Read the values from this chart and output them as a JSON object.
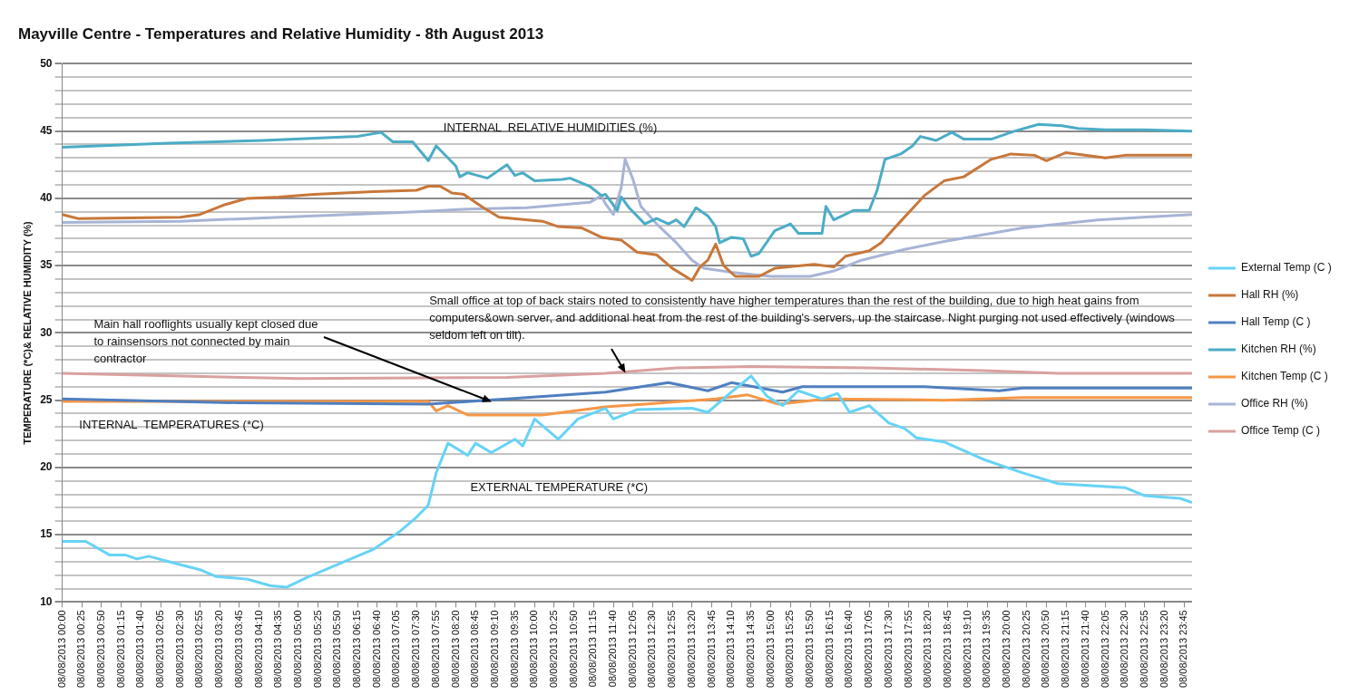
{
  "chart_data": {
    "type": "line",
    "title": "Mayville Centre - Temperatures and Relative Humidity - 8th August 2013",
    "ylabel": "TEMPERATURE (*C)& RELATIVE HUMIDITY (%)",
    "xlim": [
      "2013-08-08T00:00",
      "2013-08-08T23:55"
    ],
    "xticks": [
      {
        "value": "2013-08-08T00:00",
        "label": "08/08/2013 00:00"
      },
      {
        "value": "2013-08-08T00:25",
        "label": "08/08/2013 00:25"
      },
      {
        "value": "2013-08-08T00:50",
        "label": "08/08/2013 00:50"
      },
      {
        "value": "2013-08-08T01:15",
        "label": "08/08/2013 01:15"
      },
      {
        "value": "2013-08-08T01:40",
        "label": "08/08/2013 01:40"
      },
      {
        "value": "2013-08-08T02:05",
        "label": "08/08/2013 02:05"
      },
      {
        "value": "2013-08-08T02:30",
        "label": "08/08/2013 02:30"
      },
      {
        "value": "2013-08-08T02:55",
        "label": "08/08/2013 02:55"
      },
      {
        "value": "2013-08-08T03:20",
        "label": "08/08/2013 03:20"
      },
      {
        "value": "2013-08-08T03:45",
        "label": "08/08/2013 03:45"
      },
      {
        "value": "2013-08-08T04:10",
        "label": "08/08/2013 04:10"
      },
      {
        "value": "2013-08-08T04:35",
        "label": "08/08/2013 04:35"
      },
      {
        "value": "2013-08-08T05:00",
        "label": "08/08/2013 05:00"
      },
      {
        "value": "2013-08-08T05:25",
        "label": "08/08/2013 05:25"
      },
      {
        "value": "2013-08-08T05:50",
        "label": "08/08/2013 05:50"
      },
      {
        "value": "2013-08-08T06:15",
        "label": "08/08/2013 06:15"
      },
      {
        "value": "2013-08-08T06:40",
        "label": "08/08/2013 06:40"
      },
      {
        "value": "2013-08-08T07:05",
        "label": "08/08/2013 07:05"
      },
      {
        "value": "2013-08-08T07:30",
        "label": "08/08/2013 07:30"
      },
      {
        "value": "2013-08-08T07:55",
        "label": "08/08/2013 07:55"
      },
      {
        "value": "2013-08-08T08:20",
        "label": "08/08/2013 08:20"
      },
      {
        "value": "2013-08-08T08:45",
        "label": "08/08/2013 08:45"
      },
      {
        "value": "2013-08-08T09:10",
        "label": "08/08/2013 09:10"
      },
      {
        "value": "2013-08-08T09:35",
        "label": "08/08/2013 09:35"
      },
      {
        "value": "2013-08-08T10:00",
        "label": "08/08/2013 10:00"
      },
      {
        "value": "2013-08-08T10:25",
        "label": "08/08/2013 10:25"
      },
      {
        "value": "2013-08-08T10:50",
        "label": "08/08/2013 10:50"
      },
      {
        "value": "2013-08-08T11:15",
        "label": "08/08/2013 11:15"
      },
      {
        "value": "2013-08-08T11:40",
        "label": "08/08/2013 11:40"
      },
      {
        "value": "2013-08-08T12:05",
        "label": "08/08/2013 12:05"
      },
      {
        "value": "2013-08-08T12:30",
        "label": "08/08/2013 12:30"
      },
      {
        "value": "2013-08-08T12:55",
        "label": "08/08/2013 12:55"
      },
      {
        "value": "2013-08-08T13:20",
        "label": "08/08/2013 13:20"
      },
      {
        "value": "2013-08-08T13:45",
        "label": "08/08/2013 13:45"
      },
      {
        "value": "2013-08-08T14:10",
        "label": "08/08/2013 14:10"
      },
      {
        "value": "2013-08-08T14:35",
        "label": "08/08/2013 14:35"
      },
      {
        "value": "2013-08-08T15:00",
        "label": "08/08/2013 15:00"
      },
      {
        "value": "2013-08-08T15:25",
        "label": "08/08/2013 15:25"
      },
      {
        "value": "2013-08-08T15:50",
        "label": "08/08/2013 15:50"
      },
      {
        "value": "2013-08-08T16:15",
        "label": "08/08/2013 16:15"
      },
      {
        "value": "2013-08-08T16:40",
        "label": "08/08/2013 16:40"
      },
      {
        "value": "2013-08-08T17:05",
        "label": "08/08/2013 17:05"
      },
      {
        "value": "2013-08-08T17:30",
        "label": "08/08/2013 17:30"
      },
      {
        "value": "2013-08-08T17:55",
        "label": "08/08/2013 17:55"
      },
      {
        "value": "2013-08-08T18:20",
        "label": "08/08/2013 18:20"
      },
      {
        "value": "2013-08-08T18:45",
        "label": "08/08/2013 18:45"
      },
      {
        "value": "2013-08-08T19:10",
        "label": "08/08/2013 19:10"
      },
      {
        "value": "2013-08-08T19:35",
        "label": "08/08/2013 19:35"
      },
      {
        "value": "2013-08-08T20:00",
        "label": "08/08/2013 20:00"
      },
      {
        "value": "2013-08-08T20:25",
        "label": "08/08/2013 20:25"
      },
      {
        "value": "2013-08-08T20:50",
        "label": "08/08/2013 20:50"
      },
      {
        "value": "2013-08-08T21:15",
        "label": "08/08/2013 21:15"
      },
      {
        "value": "2013-08-08T21:40",
        "label": "08/08/2013 21:40"
      },
      {
        "value": "2013-08-08T22:05",
        "label": "08/08/2013 22:05"
      },
      {
        "value": "2013-08-08T22:30",
        "label": "08/08/2013 22:30"
      },
      {
        "value": "2013-08-08T22:55",
        "label": "08/08/2013 22:55"
      },
      {
        "value": "2013-08-08T23:20",
        "label": "08/08/2013 23:20"
      },
      {
        "value": "2013-08-08T23:45",
        "label": "08/08/2013 23:45"
      }
    ],
    "ylim": [
      10,
      50
    ],
    "yticks": [
      10,
      {
        "value": 11,
        "label": null
      },
      {
        "value": 12,
        "label": null
      },
      {
        "value": 13,
        "label": null
      },
      {
        "value": 14,
        "label": null
      },
      15,
      {
        "value": 16,
        "label": null
      },
      {
        "value": 17,
        "label": null
      },
      {
        "value": 18,
        "label": null
      },
      {
        "value": 19,
        "label": null
      },
      20,
      {
        "value": 21,
        "label": null
      },
      {
        "value": 22,
        "label": null
      },
      {
        "value": 23,
        "label": null
      },
      {
        "value": 24,
        "label": null
      },
      25,
      {
        "value": 26,
        "label": null
      },
      {
        "value": 27,
        "label": null
      },
      {
        "value": 28,
        "label": null
      },
      {
        "value": 29,
        "label": null
      },
      30,
      {
        "value": 31,
        "label": null
      },
      {
        "value": 32,
        "label": null
      },
      {
        "value": 33,
        "label": null
      },
      {
        "value": 34,
        "label": null
      },
      35,
      {
        "value": 36,
        "label": null
      },
      {
        "value": 37,
        "label": null
      },
      {
        "value": 38,
        "label": null
      },
      {
        "value": 39,
        "label": null
      },
      40,
      {
        "value": 41,
        "label": null
      },
      {
        "value": 42,
        "label": null
      },
      {
        "value": 43,
        "label": null
      },
      {
        "value": 44,
        "label": null
      },
      45,
      {
        "value": 46,
        "label": null
      },
      {
        "value": 47,
        "label": null
      },
      {
        "value": 48,
        "label": null
      },
      {
        "value": 49,
        "label": null
      },
      50
    ],
    "grid": "y",
    "legend": "right",
    "marker": "none",
    "line_style": "solid",
    "annotations": [
      "INTERNAL  RELATIVE HUMIDITIES (%)",
      {
        "text": "Small office at top of back stairs noted to consistently have higher temperatures than the rest of the building, due to high heat gains from computers&own server, and additional heat from the rest of the building's servers, up the staircase. Night purging not used effectively (windows seldom left on tilt).",
        "x": "2013-08-08T11:55",
        "y": 27.0
      },
      {
        "text": "Main hall rooflights usually kept closed due to rainsensors not connected by main contractor",
        "x": "2013-08-08T09:05",
        "y": 24.9
      },
      "INTERNAL  TEMPERATURES (*C)",
      "EXTERNAL TEMPERATURE (*C)"
    ],
    "series": [
      {
        "name": "External Temp (C )",
        "color": "#66d3f7",
        "x": [
          "2013-08-08T00:00",
          "2013-08-08T00:30",
          "2013-08-08T01:00",
          "2013-08-08T01:20",
          "2013-08-08T01:35",
          "2013-08-08T01:50",
          "2013-08-08T02:15",
          "2013-08-08T02:55",
          "2013-08-08T03:15",
          "2013-08-08T03:55",
          "2013-08-08T04:25",
          "2013-08-08T04:45",
          "2013-08-08T05:10",
          "2013-08-08T05:50",
          "2013-08-08T06:35",
          "2013-08-08T07:10",
          "2013-08-08T07:30",
          "2013-08-08T07:45",
          "2013-08-08T07:55",
          "2013-08-08T08:10",
          "2013-08-08T08:35",
          "2013-08-08T08:45",
          "2013-08-08T09:05",
          "2013-08-08T09:35",
          "2013-08-08T09:45",
          "2013-08-08T10:00",
          "2013-08-08T10:30",
          "2013-08-08T10:55",
          "2013-08-08T11:30",
          "2013-08-08T11:40",
          "2013-08-08T12:10",
          "2013-08-08T13:20",
          "2013-08-08T13:40",
          "2013-08-08T14:10",
          "2013-08-08T14:35",
          "2013-08-08T14:55",
          "2013-08-08T15:15",
          "2013-08-08T15:35",
          "2013-08-08T16:05",
          "2013-08-08T16:25",
          "2013-08-08T16:40",
          "2013-08-08T17:05",
          "2013-08-08T17:30",
          "2013-08-08T17:50",
          "2013-08-08T18:05",
          "2013-08-08T18:40",
          "2013-08-08T19:30",
          "2013-08-08T20:20",
          "2013-08-08T21:05",
          "2013-08-08T22:30",
          "2013-08-08T22:55",
          "2013-08-08T23:40",
          "2013-08-08T23:55"
        ],
        "values": [
          14.5,
          14.5,
          13.5,
          13.5,
          13.2,
          13.4,
          13.0,
          12.4,
          11.9,
          11.7,
          11.2,
          11.1,
          11.8,
          12.8,
          13.9,
          15.3,
          16.3,
          17.2,
          19.6,
          21.8,
          20.9,
          21.8,
          21.1,
          22.1,
          21.6,
          23.6,
          22.1,
          23.6,
          24.4,
          23.6,
          24.3,
          24.4,
          24.1,
          25.6,
          26.8,
          25.3,
          24.6,
          25.7,
          25.1,
          25.5,
          24.1,
          24.6,
          23.3,
          22.9,
          22.2,
          21.9,
          20.6,
          19.6,
          18.8,
          18.5,
          17.9,
          17.7,
          17.4
        ]
      },
      {
        "name": "Hall RH (%)",
        "color": "#c8773a",
        "x": [
          "2013-08-08T00:00",
          "2013-08-08T00:20",
          "2013-08-08T02:30",
          "2013-08-08T02:55",
          "2013-08-08T03:25",
          "2013-08-08T03:55",
          "2013-08-08T04:35",
          "2013-08-08T05:20",
          "2013-08-08T06:35",
          "2013-08-08T07:30",
          "2013-08-08T07:45",
          "2013-08-08T08:00",
          "2013-08-08T08:15",
          "2013-08-08T08:30",
          "2013-08-08T08:55",
          "2013-08-08T09:15",
          "2013-08-08T10:10",
          "2013-08-08T10:30",
          "2013-08-08T11:00",
          "2013-08-08T11:25",
          "2013-08-08T11:50",
          "2013-08-08T12:10",
          "2013-08-08T12:35",
          "2013-08-08T12:55",
          "2013-08-08T13:20",
          "2013-08-08T13:30",
          "2013-08-08T13:40",
          "2013-08-08T13:50",
          "2013-08-08T14:00",
          "2013-08-08T14:15",
          "2013-08-08T14:45",
          "2013-08-08T15:05",
          "2013-08-08T15:55",
          "2013-08-08T16:20",
          "2013-08-08T16:35",
          "2013-08-08T17:05",
          "2013-08-08T17:20",
          "2013-08-08T17:45",
          "2013-08-08T18:15",
          "2013-08-08T18:40",
          "2013-08-08T19:05",
          "2013-08-08T19:40",
          "2013-08-08T20:05",
          "2013-08-08T20:35",
          "2013-08-08T20:50",
          "2013-08-08T21:15",
          "2013-08-08T22:05",
          "2013-08-08T22:30",
          "2013-08-08T23:55"
        ],
        "values": [
          38.8,
          38.5,
          38.6,
          38.8,
          39.5,
          40.0,
          40.1,
          40.3,
          40.5,
          40.6,
          40.9,
          40.9,
          40.4,
          40.3,
          39.3,
          38.6,
          38.3,
          37.9,
          37.8,
          37.1,
          36.9,
          36.0,
          35.8,
          34.8,
          33.9,
          34.9,
          35.4,
          36.6,
          35.0,
          34.2,
          34.2,
          34.8,
          35.1,
          34.9,
          35.7,
          36.1,
          36.7,
          38.3,
          40.2,
          41.3,
          41.6,
          42.9,
          43.3,
          43.2,
          42.8,
          43.4,
          43.0,
          43.2,
          43.2
        ]
      },
      {
        "name": "Hall Temp (C )",
        "color": "#4f7fc0",
        "x": [
          "2013-08-08T00:00",
          "2013-08-08T03:45",
          "2013-08-08T07:45",
          "2013-08-08T09:25",
          "2013-08-08T11:30",
          "2013-08-08T12:50",
          "2013-08-08T13:40",
          "2013-08-08T14:10",
          "2013-08-08T15:15",
          "2013-08-08T15:40",
          "2013-08-08T18:15",
          "2013-08-08T19:50",
          "2013-08-08T20:20",
          "2013-08-08T23:55"
        ],
        "values": [
          25.1,
          24.8,
          24.7,
          25.1,
          25.6,
          26.3,
          25.7,
          26.3,
          25.6,
          26.0,
          26.0,
          25.7,
          25.9,
          25.9
        ]
      },
      {
        "name": "Kitchen RH (%)",
        "color": "#4bacc6",
        "x": [
          "2013-08-08T00:00",
          "2013-08-08T02:15",
          "2013-08-08T04:15",
          "2013-08-08T06:15",
          "2013-08-08T06:45",
          "2013-08-08T07:00",
          "2013-08-08T07:25",
          "2013-08-08T07:45",
          "2013-08-08T07:55",
          "2013-08-08T08:20",
          "2013-08-08T08:25",
          "2013-08-08T08:35",
          "2013-08-08T09:00",
          "2013-08-08T09:25",
          "2013-08-08T09:35",
          "2013-08-08T09:45",
          "2013-08-08T10:00",
          "2013-08-08T10:35",
          "2013-08-08T10:45",
          "2013-08-08T11:10",
          "2013-08-08T11:25",
          "2013-08-08T11:30",
          "2013-08-08T11:45",
          "2013-08-08T11:50",
          "2013-08-08T12:00",
          "2013-08-08T12:05",
          "2013-08-08T12:20",
          "2013-08-08T12:35",
          "2013-08-08T12:50",
          "2013-08-08T13:00",
          "2013-08-08T13:10",
          "2013-08-08T13:25",
          "2013-08-08T13:40",
          "2013-08-08T13:50",
          "2013-08-08T13:55",
          "2013-08-08T14:10",
          "2013-08-08T14:25",
          "2013-08-08T14:35",
          "2013-08-08T14:45",
          "2013-08-08T15:05",
          "2013-08-08T15:25",
          "2013-08-08T15:35",
          "2013-08-08T16:05",
          "2013-08-08T16:10",
          "2013-08-08T16:20",
          "2013-08-08T16:45",
          "2013-08-08T17:05",
          "2013-08-08T17:15",
          "2013-08-08T17:25",
          "2013-08-08T17:45",
          "2013-08-08T18:00",
          "2013-08-08T18:10",
          "2013-08-08T18:30",
          "2013-08-08T18:50",
          "2013-08-08T19:05",
          "2013-08-08T19:40",
          "2013-08-08T20:10",
          "2013-08-08T20:40",
          "2013-08-08T21:10",
          "2013-08-08T21:30",
          "2013-08-08T22:05",
          "2013-08-08T22:50",
          "2013-08-08T23:55"
        ],
        "values": [
          43.8,
          44.1,
          44.3,
          44.6,
          44.9,
          44.2,
          44.2,
          42.8,
          43.9,
          42.4,
          41.6,
          41.9,
          41.5,
          42.5,
          41.7,
          41.9,
          41.3,
          41.4,
          41.5,
          40.9,
          40.2,
          40.3,
          39.1,
          40.1,
          39.3,
          39.0,
          38.1,
          38.5,
          38.1,
          38.4,
          37.9,
          39.3,
          38.7,
          37.9,
          36.7,
          37.1,
          37.0,
          35.7,
          35.9,
          37.6,
          38.1,
          37.4,
          37.4,
          39.4,
          38.4,
          39.1,
          39.1,
          40.6,
          42.9,
          43.3,
          43.9,
          44.6,
          44.3,
          44.9,
          44.4,
          44.4,
          45.0,
          45.5,
          45.4,
          45.2,
          45.1,
          45.1,
          45.0
        ]
      },
      {
        "name": "Kitchen Temp (C )",
        "color": "#f79646",
        "x": [
          "2013-08-08T00:00",
          "2013-08-08T07:45",
          "2013-08-08T07:55",
          "2013-08-08T08:10",
          "2013-08-08T08:35",
          "2013-08-08T10:10",
          "2013-08-08T11:30",
          "2013-08-08T12:20",
          "2013-08-08T13:50",
          "2013-08-08T14:30",
          "2013-08-08T15:10",
          "2013-08-08T16:10",
          "2013-08-08T18:40",
          "2013-08-08T20:20",
          "2013-08-08T23:55"
        ],
        "values": [
          24.9,
          24.9,
          24.2,
          24.6,
          23.9,
          23.9,
          24.5,
          24.7,
          25.1,
          25.4,
          24.7,
          25.1,
          25.0,
          25.2,
          25.2
        ]
      },
      {
        "name": "Office RH (%)",
        "color": "#a7b4d6",
        "x": [
          "2013-08-08T00:00",
          "2013-08-08T02:30",
          "2013-08-08T05:20",
          "2013-08-08T07:30",
          "2013-08-08T08:35",
          "2013-08-08T09:50",
          "2013-08-08T11:10",
          "2013-08-08T11:25",
          "2013-08-08T11:30",
          "2013-08-08T11:40",
          "2013-08-08T11:50",
          "2013-08-08T11:55",
          "2013-08-08T12:05",
          "2013-08-08T12:15",
          "2013-08-08T12:35",
          "2013-08-08T13:00",
          "2013-08-08T13:20",
          "2013-08-08T13:35",
          "2013-08-08T14:10",
          "2013-08-08T15:00",
          "2013-08-08T15:50",
          "2013-08-08T16:20",
          "2013-08-08T16:55",
          "2013-08-08T17:50",
          "2013-08-08T18:40",
          "2013-08-08T20:20",
          "2013-08-08T21:55",
          "2013-08-08T23:55"
        ],
        "values": [
          38.2,
          38.3,
          38.7,
          39.0,
          39.2,
          39.3,
          39.7,
          40.2,
          39.6,
          38.8,
          40.8,
          42.9,
          41.4,
          39.4,
          38.1,
          36.7,
          35.4,
          34.8,
          34.5,
          34.2,
          34.2,
          34.6,
          35.4,
          36.2,
          36.8,
          37.8,
          38.4,
          38.8
        ]
      },
      {
        "name": "Office Temp (C )",
        "color": "#d9a19f",
        "x": [
          "2013-08-08T00:00",
          "2013-08-08T05:00",
          "2013-08-08T09:25",
          "2013-08-08T11:30",
          "2013-08-08T13:00",
          "2013-08-08T14:35",
          "2013-08-08T17:05",
          "2013-08-08T19:30",
          "2013-08-08T21:05",
          "2013-08-08T23:55"
        ],
        "values": [
          27.0,
          26.6,
          26.7,
          27.0,
          27.4,
          27.5,
          27.4,
          27.2,
          27.0,
          27.0
        ]
      }
    ]
  }
}
